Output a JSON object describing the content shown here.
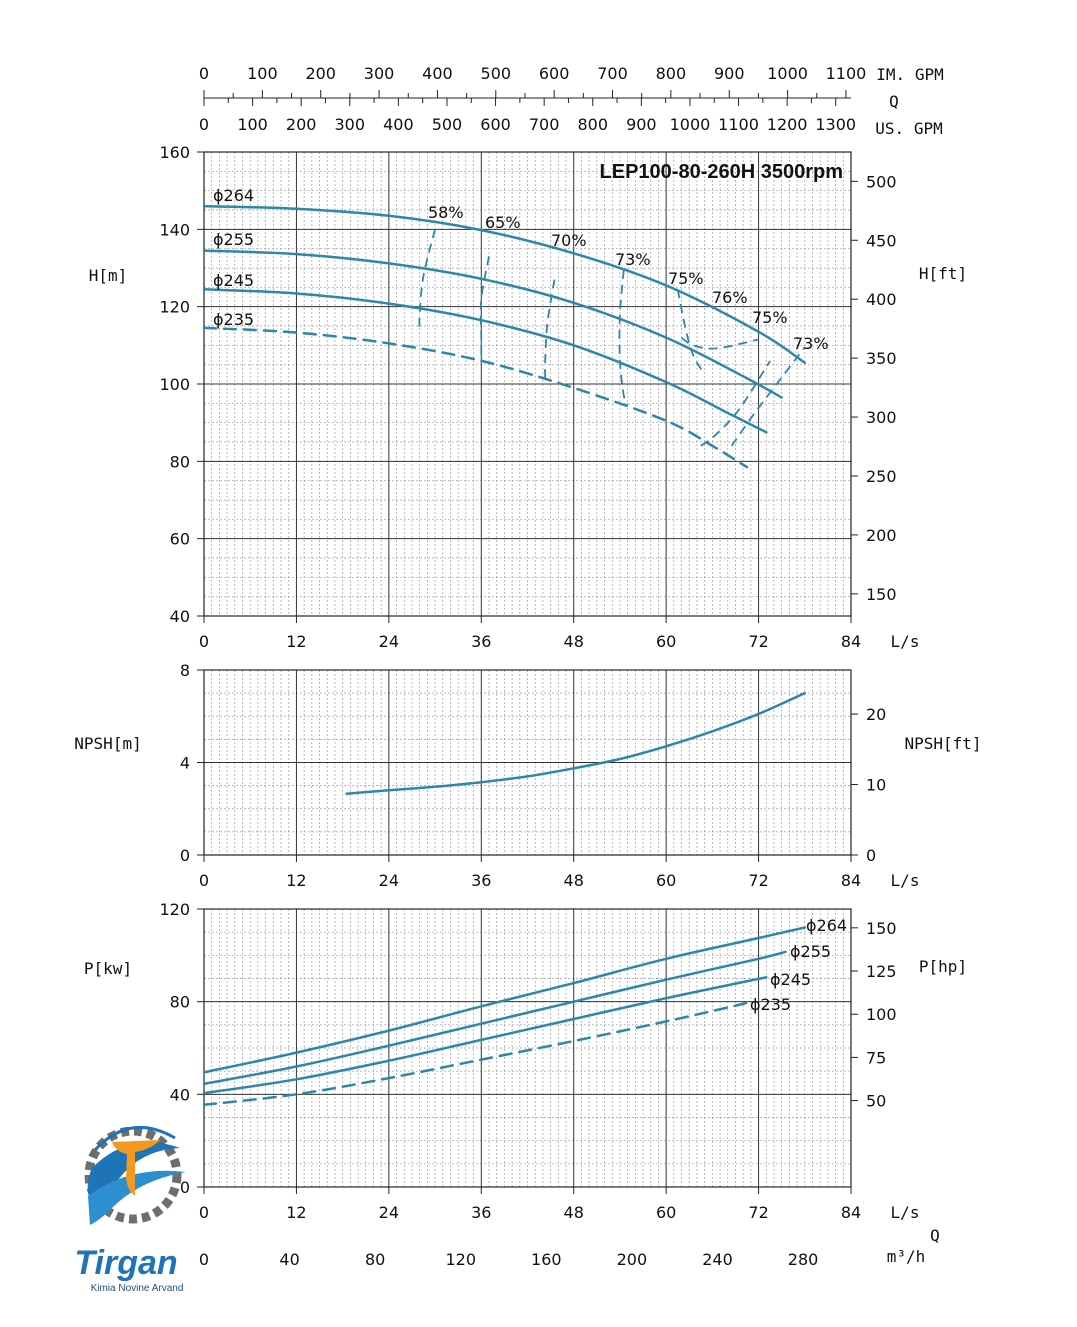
{
  "chart_data": [
    {
      "type": "line",
      "panel": "head",
      "title": "LEP100-80-260H 3500rpm",
      "xlabel": "L/s",
      "ylabel": "H[m]",
      "y2label": "H[ft]",
      "xlim": [
        0,
        84
      ],
      "ylim": [
        40,
        160
      ],
      "y2lim": [
        131.2,
        524.9
      ],
      "xticks": [
        0,
        12,
        24,
        36,
        48,
        60,
        72,
        84
      ],
      "yticks": [
        40,
        60,
        80,
        100,
        120,
        140,
        160
      ],
      "y2ticks": [
        150,
        200,
        250,
        300,
        350,
        400,
        450,
        500
      ],
      "grid": true,
      "top_axis": {
        "label": "Q",
        "im_gpm_label": "IM. GPM",
        "us_gpm_label": "US. GPM",
        "im_gpm_ticks": [
          0,
          100,
          200,
          300,
          400,
          500,
          600,
          700,
          800,
          900,
          1000,
          1100
        ],
        "us_gpm_ticks": [
          0,
          100,
          200,
          300,
          400,
          500,
          600,
          700,
          800,
          900,
          1000,
          1100,
          1200,
          1300
        ]
      },
      "series": [
        {
          "name": "ɸ264",
          "style": "solid",
          "x": [
            0,
            12,
            24,
            36,
            48,
            60,
            72,
            78
          ],
          "y": [
            146,
            145.3,
            143.5,
            139.8,
            133.8,
            125.5,
            113.5,
            105.5
          ]
        },
        {
          "name": "ɸ255",
          "style": "solid",
          "x": [
            0,
            12,
            24,
            36,
            48,
            60,
            70,
            75
          ],
          "y": [
            134.5,
            133.6,
            131.2,
            127.2,
            121,
            112,
            102,
            96.5
          ]
        },
        {
          "name": "ɸ245",
          "style": "solid",
          "x": [
            0,
            12,
            24,
            36,
            48,
            60,
            68,
            73
          ],
          "y": [
            124.5,
            123.4,
            120.8,
            116.5,
            110,
            100.5,
            92.5,
            87.5
          ]
        },
        {
          "name": "ɸ235",
          "style": "dashed",
          "x": [
            0,
            12,
            24,
            36,
            48,
            60,
            66,
            70.5
          ],
          "y": [
            114.5,
            113.3,
            110.5,
            106,
            99,
            90.5,
            84,
            78.5
          ]
        }
      ],
      "efficiency_curves": [
        {
          "label": "58%",
          "x": [
            30,
            28.5,
            28,
            28
          ],
          "y": [
            140,
            128,
            118,
            113.2
          ]
        },
        {
          "label": "65%",
          "x": [
            37,
            36,
            36,
            36
          ],
          "y": [
            133,
            122,
            112,
            106.2
          ]
        },
        {
          "label": "70%",
          "x": [
            45.5,
            44.6,
            44.3,
            44.3
          ],
          "y": [
            127,
            116,
            106,
            101.3
          ]
        },
        {
          "label": "73% (left)",
          "x": [
            54.5,
            54,
            54,
            54.5,
            55
          ],
          "y": [
            129.5,
            118,
            106,
            97,
            94.5
          ]
        },
        {
          "label": "75% (left)",
          "x": [
            61.5,
            62.5,
            63.5,
            65
          ],
          "y": [
            124.5,
            114.5,
            107.5,
            102.5
          ]
        },
        {
          "label": "76%",
          "x": [
            62,
            63.5,
            66.5,
            72
          ],
          "y": [
            112,
            110,
            109.2,
            111.5
          ]
        },
        {
          "label": "75% (right)",
          "x": [
            64.5,
            66.5,
            69.5,
            73.5
          ],
          "y": [
            84,
            87,
            93.5,
            106
          ]
        },
        {
          "label": "73% (right)",
          "x": [
            68.5,
            71.5,
            75.5,
            78
          ],
          "y": [
            84,
            92.5,
            103,
            109.5
          ]
        }
      ],
      "labels": [
        "ɸ264",
        "ɸ255",
        "ɸ245",
        "ɸ235",
        "58%",
        "65%",
        "70%",
        "73%",
        "75%",
        "76%",
        "75%",
        "73%"
      ]
    },
    {
      "type": "line",
      "panel": "npsh",
      "xlabel": "L/s",
      "ylabel": "NPSH[m]",
      "y2label": "NPSH[ft]",
      "xlim": [
        0,
        84
      ],
      "ylim": [
        0,
        8
      ],
      "y2lim": [
        0,
        26.25
      ],
      "xticks": [
        0,
        12,
        24,
        36,
        48,
        60,
        72,
        84
      ],
      "yticks": [
        0,
        4,
        8
      ],
      "y2ticks": [
        0,
        10,
        20
      ],
      "grid": true,
      "series": [
        {
          "name": "",
          "style": "solid",
          "x": [
            18.5,
            24,
            30,
            36,
            42,
            48,
            54,
            60,
            66,
            72,
            78
          ],
          "y": [
            2.65,
            2.8,
            2.95,
            3.15,
            3.4,
            3.75,
            4.15,
            4.7,
            5.35,
            6.1,
            7
          ]
        }
      ]
    },
    {
      "type": "line",
      "panel": "power",
      "xlabel": "L/s",
      "ylabel": "P[kw]",
      "y2label": "P[hp]",
      "xlim": [
        0,
        84
      ],
      "ylim": [
        0,
        120
      ],
      "y2lim": [
        0,
        160.9
      ],
      "xticks": [
        0,
        12,
        24,
        36,
        48,
        60,
        72,
        84
      ],
      "yticks": [
        0,
        40,
        80,
        120
      ],
      "y2ticks": [
        50,
        75,
        100,
        125,
        150
      ],
      "grid": true,
      "bottom_axis": {
        "label": "Q",
        "m3h_label": "m³/h",
        "m3h_ticks": [
          0,
          40,
          80,
          120,
          160,
          200,
          240,
          280
        ]
      },
      "series": [
        {
          "name": "ɸ264",
          "style": "solid",
          "x": [
            0,
            12,
            24,
            36,
            48,
            60,
            72,
            78
          ],
          "y": [
            49.5,
            58,
            67.5,
            78,
            88,
            98.5,
            107.5,
            112
          ]
        },
        {
          "name": "ɸ255",
          "style": "solid",
          "x": [
            0,
            12,
            24,
            36,
            48,
            60,
            72,
            75.5
          ],
          "y": [
            44.5,
            52,
            61,
            70.5,
            80,
            89.5,
            98.5,
            101.5
          ]
        },
        {
          "name": "ɸ245",
          "style": "solid",
          "x": [
            0,
            12,
            24,
            36,
            48,
            60,
            70,
            73
          ],
          "y": [
            40.5,
            46.5,
            54.5,
            63.5,
            72.5,
            81.5,
            88.5,
            90.5
          ]
        },
        {
          "name": "ɸ235",
          "style": "dashed",
          "x": [
            0,
            12,
            24,
            36,
            48,
            60,
            68,
            70.5
          ],
          "y": [
            35.5,
            40,
            47,
            55,
            63,
            71.5,
            77.5,
            79.5
          ]
        }
      ]
    }
  ],
  "logo": {
    "name": "Tirgan",
    "subtitle": "Kimia Novine Arvand"
  },
  "colors": {
    "curve": "#2e86a8",
    "grid_major": "#333333",
    "grid_minor": "#9a9a9a",
    "logo_blue": "#1f74b8",
    "logo_orange": "#f39a1e",
    "logo_gray": "#6d6e70"
  }
}
